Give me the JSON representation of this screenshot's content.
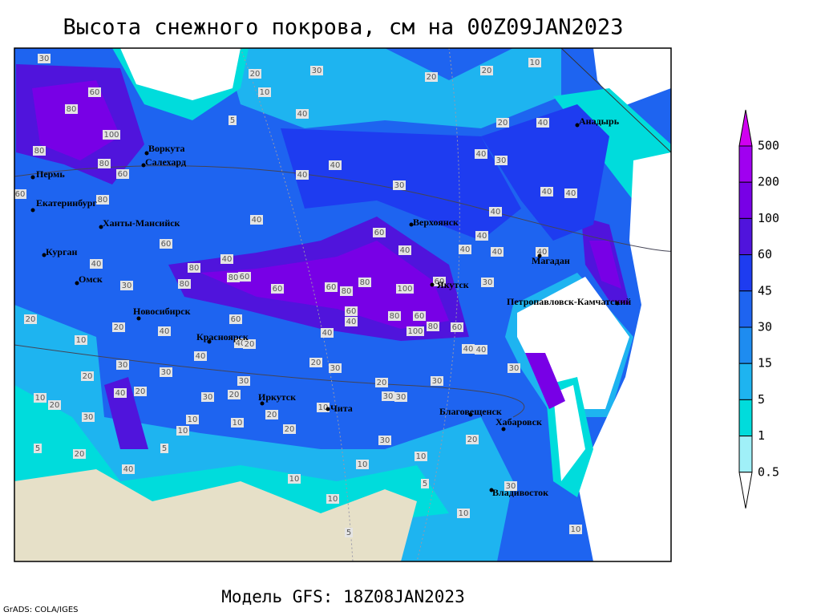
{
  "title": "Высота снежного покрова, см на 00Z09JAN2023",
  "model_label": "Модель GFS: 18Z08JAN2023",
  "credit": "GrADS: COLA/IGES",
  "cities": [
    "Воркута",
    "Салехард",
    "Пермь",
    "Екатеринбург",
    "Ханты-Мансийск",
    "Курган",
    "Омск",
    "Новосибирск",
    "Красноярск",
    "Иркутск",
    "Чита",
    "Благовещенск",
    "Хабаровск",
    "Владивосток",
    "Якутск",
    "Верхоянск",
    "Магадан",
    "Петропавловск-Камчатский",
    "Анадырь"
  ],
  "contour_labels": [
    30,
    20,
    30,
    20,
    20,
    10,
    60,
    80,
    100,
    10,
    5,
    40,
    20,
    40,
    80,
    80,
    60,
    40,
    40,
    40,
    30,
    30,
    60,
    80,
    40,
    40,
    40,
    40,
    40,
    60,
    60,
    40,
    40,
    40,
    40,
    40,
    40,
    80,
    80,
    60,
    30,
    80,
    60,
    60,
    80,
    80,
    100,
    60,
    30,
    20,
    60,
    80,
    60,
    80,
    40,
    60,
    100,
    20,
    40,
    60,
    40,
    20,
    10,
    40,
    40,
    40,
    40,
    30,
    20,
    30,
    20,
    30,
    30,
    20,
    30,
    30,
    10,
    20,
    40,
    20,
    30,
    20,
    30,
    30,
    30,
    10,
    10,
    20,
    10,
    10,
    20,
    5,
    20,
    5,
    30,
    20,
    10,
    40,
    10,
    10,
    5,
    10,
    30,
    10,
    5,
    10
  ],
  "colorbar": {
    "levels": [
      500,
      200,
      100,
      60,
      45,
      30,
      15,
      5,
      1,
      0.5
    ],
    "colors": [
      "#d000f0",
      "#a000f0",
      "#7800e6",
      "#5014dc",
      "#1e3cf0",
      "#1e64f0",
      "#1e8cf0",
      "#1eb4f0",
      "#00dcdc",
      "#a0f0f8",
      "#ffffff"
    ]
  }
}
